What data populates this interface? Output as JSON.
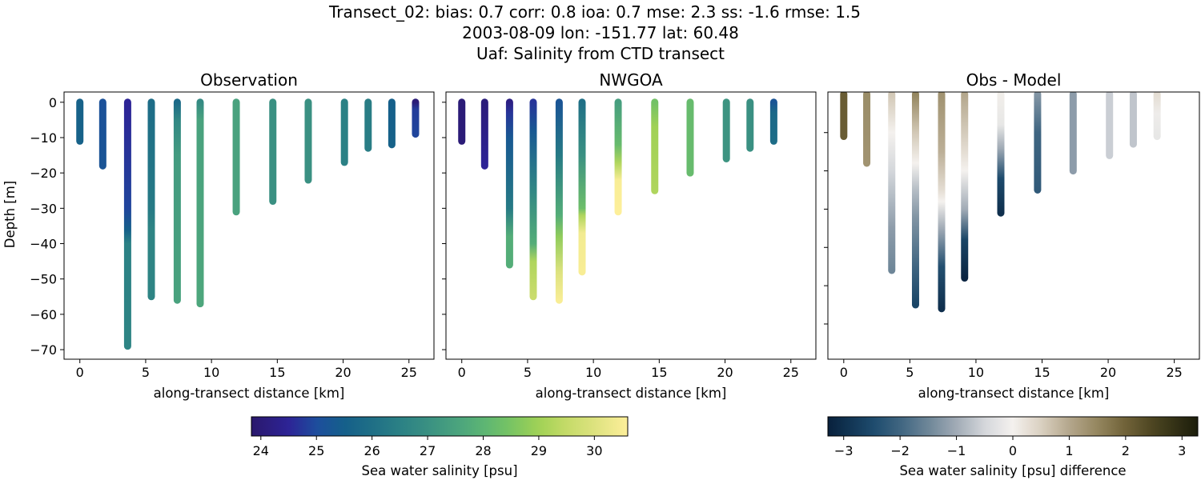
{
  "figure": {
    "title_lines": [
      "Transect_02: bias: 0.7  corr: 0.8  ioa: 0.7  mse: 2.3  ss: -1.6  rmse: 1.5",
      "2003-08-09 lon: -151.77 lat: 60.48",
      "Uaf: Salinity from CTD transect"
    ]
  },
  "chart_data": [
    {
      "type": "scatter",
      "title": "Observation",
      "xlabel": "along-transect distance [km]",
      "ylabel": "Depth [m]",
      "xlim": [
        -1.2,
        26.9
      ],
      "ylim": [
        -72.7,
        2.9
      ],
      "xticks": [
        0,
        5,
        10,
        15,
        20,
        25
      ],
      "yticks": [
        0,
        -10,
        -20,
        -30,
        -40,
        -50,
        -60,
        -70
      ],
      "colormap": "salinity",
      "casts": [
        {
          "x": 0.0,
          "bottom": -11,
          "stops": [
            [
              0,
              25.6
            ],
            [
              -11,
              25.6
            ]
          ]
        },
        {
          "x": 1.74,
          "bottom": -18,
          "stops": [
            [
              0,
              25.1
            ],
            [
              -18,
              25.2
            ]
          ]
        },
        {
          "x": 3.63,
          "bottom": -69,
          "stops": [
            [
              0,
              24.5
            ],
            [
              -30,
              24.9
            ],
            [
              -36,
              25.5
            ],
            [
              -40,
              26.5
            ],
            [
              -69,
              26.6
            ]
          ]
        },
        {
          "x": 5.43,
          "bottom": -55,
          "stops": [
            [
              0,
              25.9
            ],
            [
              -30,
              26.3
            ],
            [
              -36,
              26.6
            ],
            [
              -55,
              26.6
            ]
          ]
        },
        {
          "x": 7.4,
          "bottom": -56,
          "stops": [
            [
              0,
              25.8
            ],
            [
              -5,
              26.7
            ],
            [
              -15,
              27.3
            ],
            [
              -56,
              27.5
            ]
          ]
        },
        {
          "x": 9.14,
          "bottom": -57,
          "stops": [
            [
              0,
              26.8
            ],
            [
              -5,
              27.5
            ],
            [
              -57,
              27.6
            ]
          ]
        },
        {
          "x": 11.88,
          "bottom": -31,
          "stops": [
            [
              0,
              27.5
            ],
            [
              -31,
              27.5
            ]
          ]
        },
        {
          "x": 14.66,
          "bottom": -28,
          "stops": [
            [
              0,
              27.0
            ],
            [
              -28,
              27.0
            ]
          ]
        },
        {
          "x": 17.35,
          "bottom": -22,
          "stops": [
            [
              0,
              27.0
            ],
            [
              -22,
              27.0
            ]
          ]
        },
        {
          "x": 20.1,
          "bottom": -17,
          "stops": [
            [
              0,
              26.5
            ],
            [
              -17,
              26.5
            ]
          ]
        },
        {
          "x": 21.9,
          "bottom": -13,
          "stops": [
            [
              0,
              26.4
            ],
            [
              -13,
              26.4
            ]
          ]
        },
        {
          "x": 23.7,
          "bottom": -12,
          "stops": [
            [
              0,
              25.5
            ],
            [
              -12,
              25.6
            ]
          ]
        },
        {
          "x": 25.5,
          "bottom": -9,
          "stops": [
            [
              0,
              24.0
            ],
            [
              -2,
              24.8
            ],
            [
              -9,
              24.9
            ]
          ]
        }
      ]
    },
    {
      "type": "scatter",
      "title": "NWGOA",
      "xlabel": "along-transect distance [km]",
      "xlim": [
        -1.2,
        26.9
      ],
      "ylim": [
        -72.7,
        2.9
      ],
      "xticks": [
        0,
        5,
        10,
        15,
        20,
        25
      ],
      "colormap": "salinity",
      "casts": [
        {
          "x": 0.0,
          "bottom": -11,
          "stops": [
            [
              0,
              24.0
            ],
            [
              -11,
              24.0
            ]
          ]
        },
        {
          "x": 1.74,
          "bottom": -18,
          "stops": [
            [
              0,
              24.05
            ],
            [
              -6,
              24.2
            ],
            [
              -18,
              24.5
            ]
          ]
        },
        {
          "x": 3.63,
          "bottom": -46,
          "stops": [
            [
              0,
              24.2
            ],
            [
              -3,
              24.7
            ],
            [
              -10,
              25.3
            ],
            [
              -30,
              26.3
            ],
            [
              -38,
              27.8
            ],
            [
              -46,
              27.8
            ]
          ]
        },
        {
          "x": 5.43,
          "bottom": -55,
          "stops": [
            [
              0,
              24.7
            ],
            [
              -8,
              25.3
            ],
            [
              -25,
              26.7
            ],
            [
              -40,
              27.8
            ],
            [
              -45,
              29.2
            ],
            [
              -55,
              29.6
            ]
          ]
        },
        {
          "x": 7.4,
          "bottom": -56,
          "stops": [
            [
              0,
              25.2
            ],
            [
              -15,
              26.3
            ],
            [
              -32,
              27.8
            ],
            [
              -38,
              28.8
            ],
            [
              -48,
              30.0
            ],
            [
              -56,
              30.5
            ]
          ]
        },
        {
          "x": 9.14,
          "bottom": -48,
          "stops": [
            [
              0,
              26.0
            ],
            [
              -15,
              27.0
            ],
            [
              -30,
              28.3
            ],
            [
              -32,
              29.2
            ],
            [
              -37,
              30.4
            ],
            [
              -48,
              30.5
            ]
          ]
        },
        {
          "x": 11.88,
          "bottom": -31,
          "stops": [
            [
              0,
              27.4
            ],
            [
              -12,
              28.2
            ],
            [
              -17,
              29.2
            ],
            [
              -22,
              30.5
            ],
            [
              -31,
              30.6
            ]
          ]
        },
        {
          "x": 14.66,
          "bottom": -25,
          "stops": [
            [
              0,
              28.4
            ],
            [
              -7,
              29.0
            ],
            [
              -25,
              29.2
            ]
          ]
        },
        {
          "x": 17.35,
          "bottom": -20,
          "stops": [
            [
              0,
              28.2
            ],
            [
              -20,
              28.2
            ]
          ]
        },
        {
          "x": 20.1,
          "bottom": -16,
          "stops": [
            [
              0,
              27.1
            ],
            [
              -16,
              27.1
            ]
          ]
        },
        {
          "x": 21.9,
          "bottom": -13,
          "stops": [
            [
              0,
              27.0
            ],
            [
              -13,
              27.0
            ]
          ]
        },
        {
          "x": 23.7,
          "bottom": -11,
          "stops": [
            [
              0,
              25.2
            ],
            [
              -3,
              25.8
            ],
            [
              -11,
              25.9
            ]
          ]
        }
      ]
    },
    {
      "type": "scatter",
      "title": "Obs - Model",
      "xlabel": "along-transect distance [km]",
      "xlim": [
        -1.2,
        26.9
      ],
      "ylim": [
        -69.2,
        0.6
      ],
      "xticks": [
        0,
        5,
        10,
        15,
        20,
        25
      ],
      "yticks_unlabeled": [
        -10,
        -20,
        -30,
        -40,
        -50,
        -60
      ],
      "colormap": "difference",
      "casts": [
        {
          "x": 0.0,
          "bottom": -11,
          "stops": [
            [
              0,
              2.1
            ],
            [
              -11,
              2.1
            ]
          ]
        },
        {
          "x": 1.74,
          "bottom": -18,
          "stops": [
            [
              0,
              1.4
            ],
            [
              -18,
              1.3
            ]
          ]
        },
        {
          "x": 3.63,
          "bottom": -46,
          "stops": [
            [
              0,
              0.6
            ],
            [
              -10,
              0
            ],
            [
              -20,
              -0.5
            ],
            [
              -35,
              -1.2
            ],
            [
              -46,
              -1.5
            ]
          ]
        },
        {
          "x": 5.43,
          "bottom": -55,
          "stops": [
            [
              0,
              1.5
            ],
            [
              -10,
              0.6
            ],
            [
              -18,
              0
            ],
            [
              -25,
              -0.8
            ],
            [
              -32,
              -1.3
            ],
            [
              -45,
              -2.0
            ],
            [
              -55,
              -2.6
            ]
          ]
        },
        {
          "x": 7.4,
          "bottom": -56,
          "stops": [
            [
              0,
              1.3
            ],
            [
              -15,
              0.9
            ],
            [
              -25,
              0.3
            ],
            [
              -28,
              0
            ],
            [
              -35,
              -1
            ],
            [
              -45,
              -2.4
            ],
            [
              -56,
              -3.0
            ]
          ]
        },
        {
          "x": 9.14,
          "bottom": -48,
          "stops": [
            [
              0,
              1.0
            ],
            [
              -15,
              0.3
            ],
            [
              -20,
              0
            ],
            [
              -30,
              -1
            ],
            [
              -38,
              -2.6
            ],
            [
              -48,
              -3.2
            ]
          ]
        },
        {
          "x": 11.88,
          "bottom": -31,
          "stops": [
            [
              0,
              0.05
            ],
            [
              -8,
              -0.2
            ],
            [
              -14,
              -1
            ],
            [
              -22,
              -2.5
            ],
            [
              -31,
              -3.0
            ]
          ]
        },
        {
          "x": 14.66,
          "bottom": -25,
          "stops": [
            [
              0,
              -1.3
            ],
            [
              -10,
              -2.0
            ],
            [
              -25,
              -2.2
            ]
          ]
        },
        {
          "x": 17.35,
          "bottom": -20,
          "stops": [
            [
              0,
              -1.2
            ],
            [
              -20,
              -1.2
            ]
          ]
        },
        {
          "x": 20.1,
          "bottom": -16,
          "stops": [
            [
              0,
              -0.6
            ],
            [
              -16,
              -0.6
            ]
          ]
        },
        {
          "x": 21.9,
          "bottom": -13,
          "stops": [
            [
              0,
              -0.7
            ],
            [
              -13,
              -0.7
            ]
          ]
        },
        {
          "x": 23.7,
          "bottom": -11,
          "stops": [
            [
              0,
              0.3
            ],
            [
              -5,
              -0.1
            ],
            [
              -11,
              -0.2
            ]
          ]
        }
      ]
    }
  ],
  "colorbars": [
    {
      "label": "Sea water salinity [psu]",
      "range": [
        23.83,
        30.6
      ],
      "ticks": [
        24,
        25,
        26,
        27,
        28,
        29,
        30
      ],
      "colormap": "salinity"
    },
    {
      "label": "Sea water salinity [psu] difference",
      "range": [
        -3.28,
        3.28
      ],
      "ticks": [
        -3,
        -2,
        -1,
        0,
        1,
        2,
        3
      ],
      "tick_labels": [
        "−3",
        "−2",
        "−1",
        "0",
        "1",
        "2",
        "3"
      ],
      "colormap": "difference"
    }
  ],
  "colormaps": {
    "salinity": [
      [
        23.83,
        "#2a186c"
      ],
      [
        24.5,
        "#2d2396"
      ],
      [
        25,
        "#1d4d9d"
      ],
      [
        25.5,
        "#155f8a"
      ],
      [
        26,
        "#1f6f86"
      ],
      [
        26.5,
        "#2b8185"
      ],
      [
        27,
        "#3a9082"
      ],
      [
        27.5,
        "#49a27e"
      ],
      [
        28,
        "#5cb574"
      ],
      [
        28.5,
        "#78c463"
      ],
      [
        29,
        "#a0d155"
      ],
      [
        29.5,
        "#c5db68"
      ],
      [
        30,
        "#dde27f"
      ],
      [
        30.6,
        "#fdef9a"
      ]
    ],
    "difference": [
      [
        -3.28,
        "#08203c"
      ],
      [
        -2.5,
        "#1c4a6c"
      ],
      [
        -2,
        "#3f6581"
      ],
      [
        -1.5,
        "#6e8698"
      ],
      [
        -1,
        "#a1abb6"
      ],
      [
        -0.5,
        "#d4d7db"
      ],
      [
        0,
        "#f4f1ee"
      ],
      [
        0.5,
        "#dad0c1"
      ],
      [
        1,
        "#b4a78c"
      ],
      [
        1.5,
        "#94865f"
      ],
      [
        2,
        "#706238"
      ],
      [
        2.5,
        "#4b4420"
      ],
      [
        3.28,
        "#1b1d0b"
      ]
    ]
  }
}
